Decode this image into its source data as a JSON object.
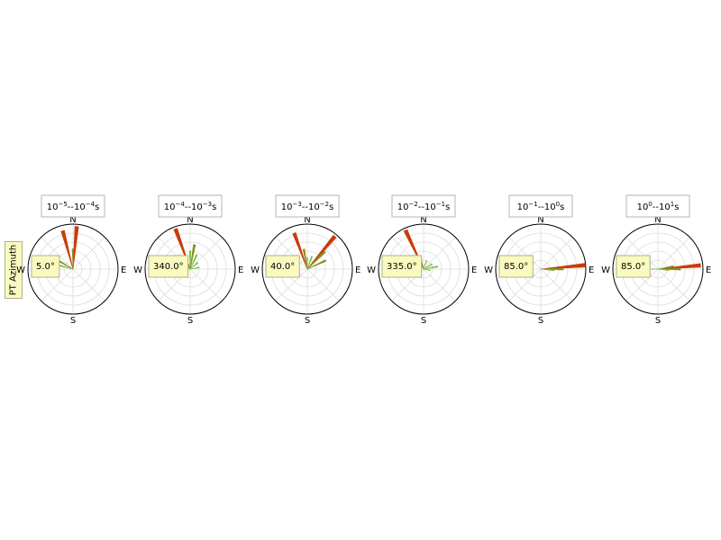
{
  "ylabel": "PT Azimuth",
  "chart_data": [
    {
      "type": "rose",
      "title_base": "10",
      "title_exp1": "−5",
      "title_mid": "--10",
      "title_exp2": "−4",
      "title_unit": "s",
      "compass": {
        "N": "N",
        "E": "E",
        "S": "S",
        "W": "W"
      },
      "annotation": "5.0°",
      "petals": [
        {
          "azimuth": 5,
          "length": 0.95,
          "color": "#c83c0a"
        },
        {
          "azimuth": 345,
          "length": 0.88,
          "color": "#c83c0a"
        },
        {
          "azimuth": 0,
          "length": 0.45,
          "color": "#8c8c1e"
        },
        {
          "azimuth": 300,
          "length": 0.42,
          "color": "#8c8c1e"
        },
        {
          "azimuth": 285,
          "length": 0.3,
          "color": "#78be3c"
        }
      ]
    },
    {
      "type": "rose",
      "title_base": "10",
      "title_exp1": "−4",
      "title_mid": "--10",
      "title_exp2": "−3",
      "title_unit": "s",
      "compass": {
        "N": "N",
        "E": "E",
        "S": "S",
        "W": "W"
      },
      "annotation": "340.0°",
      "petals": [
        {
          "azimuth": 340,
          "length": 0.95,
          "color": "#c83c0a"
        },
        {
          "azimuth": 10,
          "length": 0.55,
          "color": "#8c8c1e"
        },
        {
          "azimuth": 0,
          "length": 0.4,
          "color": "#78be3c"
        },
        {
          "azimuth": 25,
          "length": 0.35,
          "color": "#78be3c"
        },
        {
          "azimuth": 50,
          "length": 0.22,
          "color": "#78be3c"
        },
        {
          "azimuth": 80,
          "length": 0.2,
          "color": "#78be3c"
        },
        {
          "azimuth": 320,
          "length": 0.28,
          "color": "#78be3c"
        },
        {
          "azimuth": 300,
          "length": 0.25,
          "color": "#78be3c"
        }
      ]
    },
    {
      "type": "rose",
      "title_base": "10",
      "title_exp1": "−3",
      "title_mid": "--10",
      "title_exp2": "−2",
      "title_unit": "s",
      "compass": {
        "N": "N",
        "E": "E",
        "S": "S",
        "W": "W"
      },
      "annotation": "40.0°",
      "petals": [
        {
          "azimuth": 40,
          "length": 0.95,
          "color": "#c83c0a"
        },
        {
          "azimuth": 340,
          "length": 0.85,
          "color": "#c83c0a"
        },
        {
          "azimuth": 45,
          "length": 0.55,
          "color": "#8c8c1e"
        },
        {
          "azimuth": 65,
          "length": 0.45,
          "color": "#8c8c1e"
        },
        {
          "azimuth": 350,
          "length": 0.45,
          "color": "#8c8c1e"
        },
        {
          "azimuth": 20,
          "length": 0.3,
          "color": "#78be3c"
        },
        {
          "azimuth": 0,
          "length": 0.25,
          "color": "#78be3c"
        }
      ]
    },
    {
      "type": "rose",
      "title_base": "10",
      "title_exp1": "−2",
      "title_mid": "--10",
      "title_exp2": "−1",
      "title_unit": "s",
      "compass": {
        "N": "N",
        "E": "E",
        "S": "S",
        "W": "W"
      },
      "annotation": "335.0°",
      "petals": [
        {
          "azimuth": 335,
          "length": 0.95,
          "color": "#c83c0a"
        },
        {
          "azimuth": 345,
          "length": 0.3,
          "color": "#8c8c1e"
        },
        {
          "azimuth": 80,
          "length": 0.32,
          "color": "#78be3c"
        },
        {
          "azimuth": 60,
          "length": 0.22,
          "color": "#78be3c"
        },
        {
          "azimuth": 100,
          "length": 0.15,
          "color": "#78be3c"
        },
        {
          "azimuth": 20,
          "length": 0.2,
          "color": "#78be3c"
        }
      ]
    },
    {
      "type": "rose",
      "title_base": "10",
      "title_exp1": "−1",
      "title_mid": "--10",
      "title_exp2": "0",
      "title_unit": "s",
      "compass": {
        "N": "N",
        "E": "E",
        "S": "S",
        "W": "W"
      },
      "annotation": "85.0°",
      "petals": [
        {
          "azimuth": 85,
          "length": 0.98,
          "color": "#c83c0a"
        },
        {
          "azimuth": 90,
          "length": 0.5,
          "color": "#8c8c1e"
        },
        {
          "azimuth": 95,
          "length": 0.3,
          "color": "#78be3c"
        }
      ]
    },
    {
      "type": "rose",
      "title_base": "10",
      "title_exp1": "0",
      "title_mid": "--10",
      "title_exp2": "1",
      "title_unit": "s",
      "compass": {
        "N": "N",
        "E": "E",
        "S": "S",
        "W": "W"
      },
      "annotation": "85.0°",
      "petals": [
        {
          "azimuth": 85,
          "length": 0.95,
          "color": "#c83c0a"
        },
        {
          "azimuth": 90,
          "length": 0.5,
          "color": "#8c8c1e"
        },
        {
          "azimuth": 80,
          "length": 0.35,
          "color": "#8c8c1e"
        },
        {
          "azimuth": 95,
          "length": 0.25,
          "color": "#78be3c"
        },
        {
          "azimuth": 270,
          "length": 0.15,
          "color": "#78be3c"
        }
      ]
    }
  ]
}
